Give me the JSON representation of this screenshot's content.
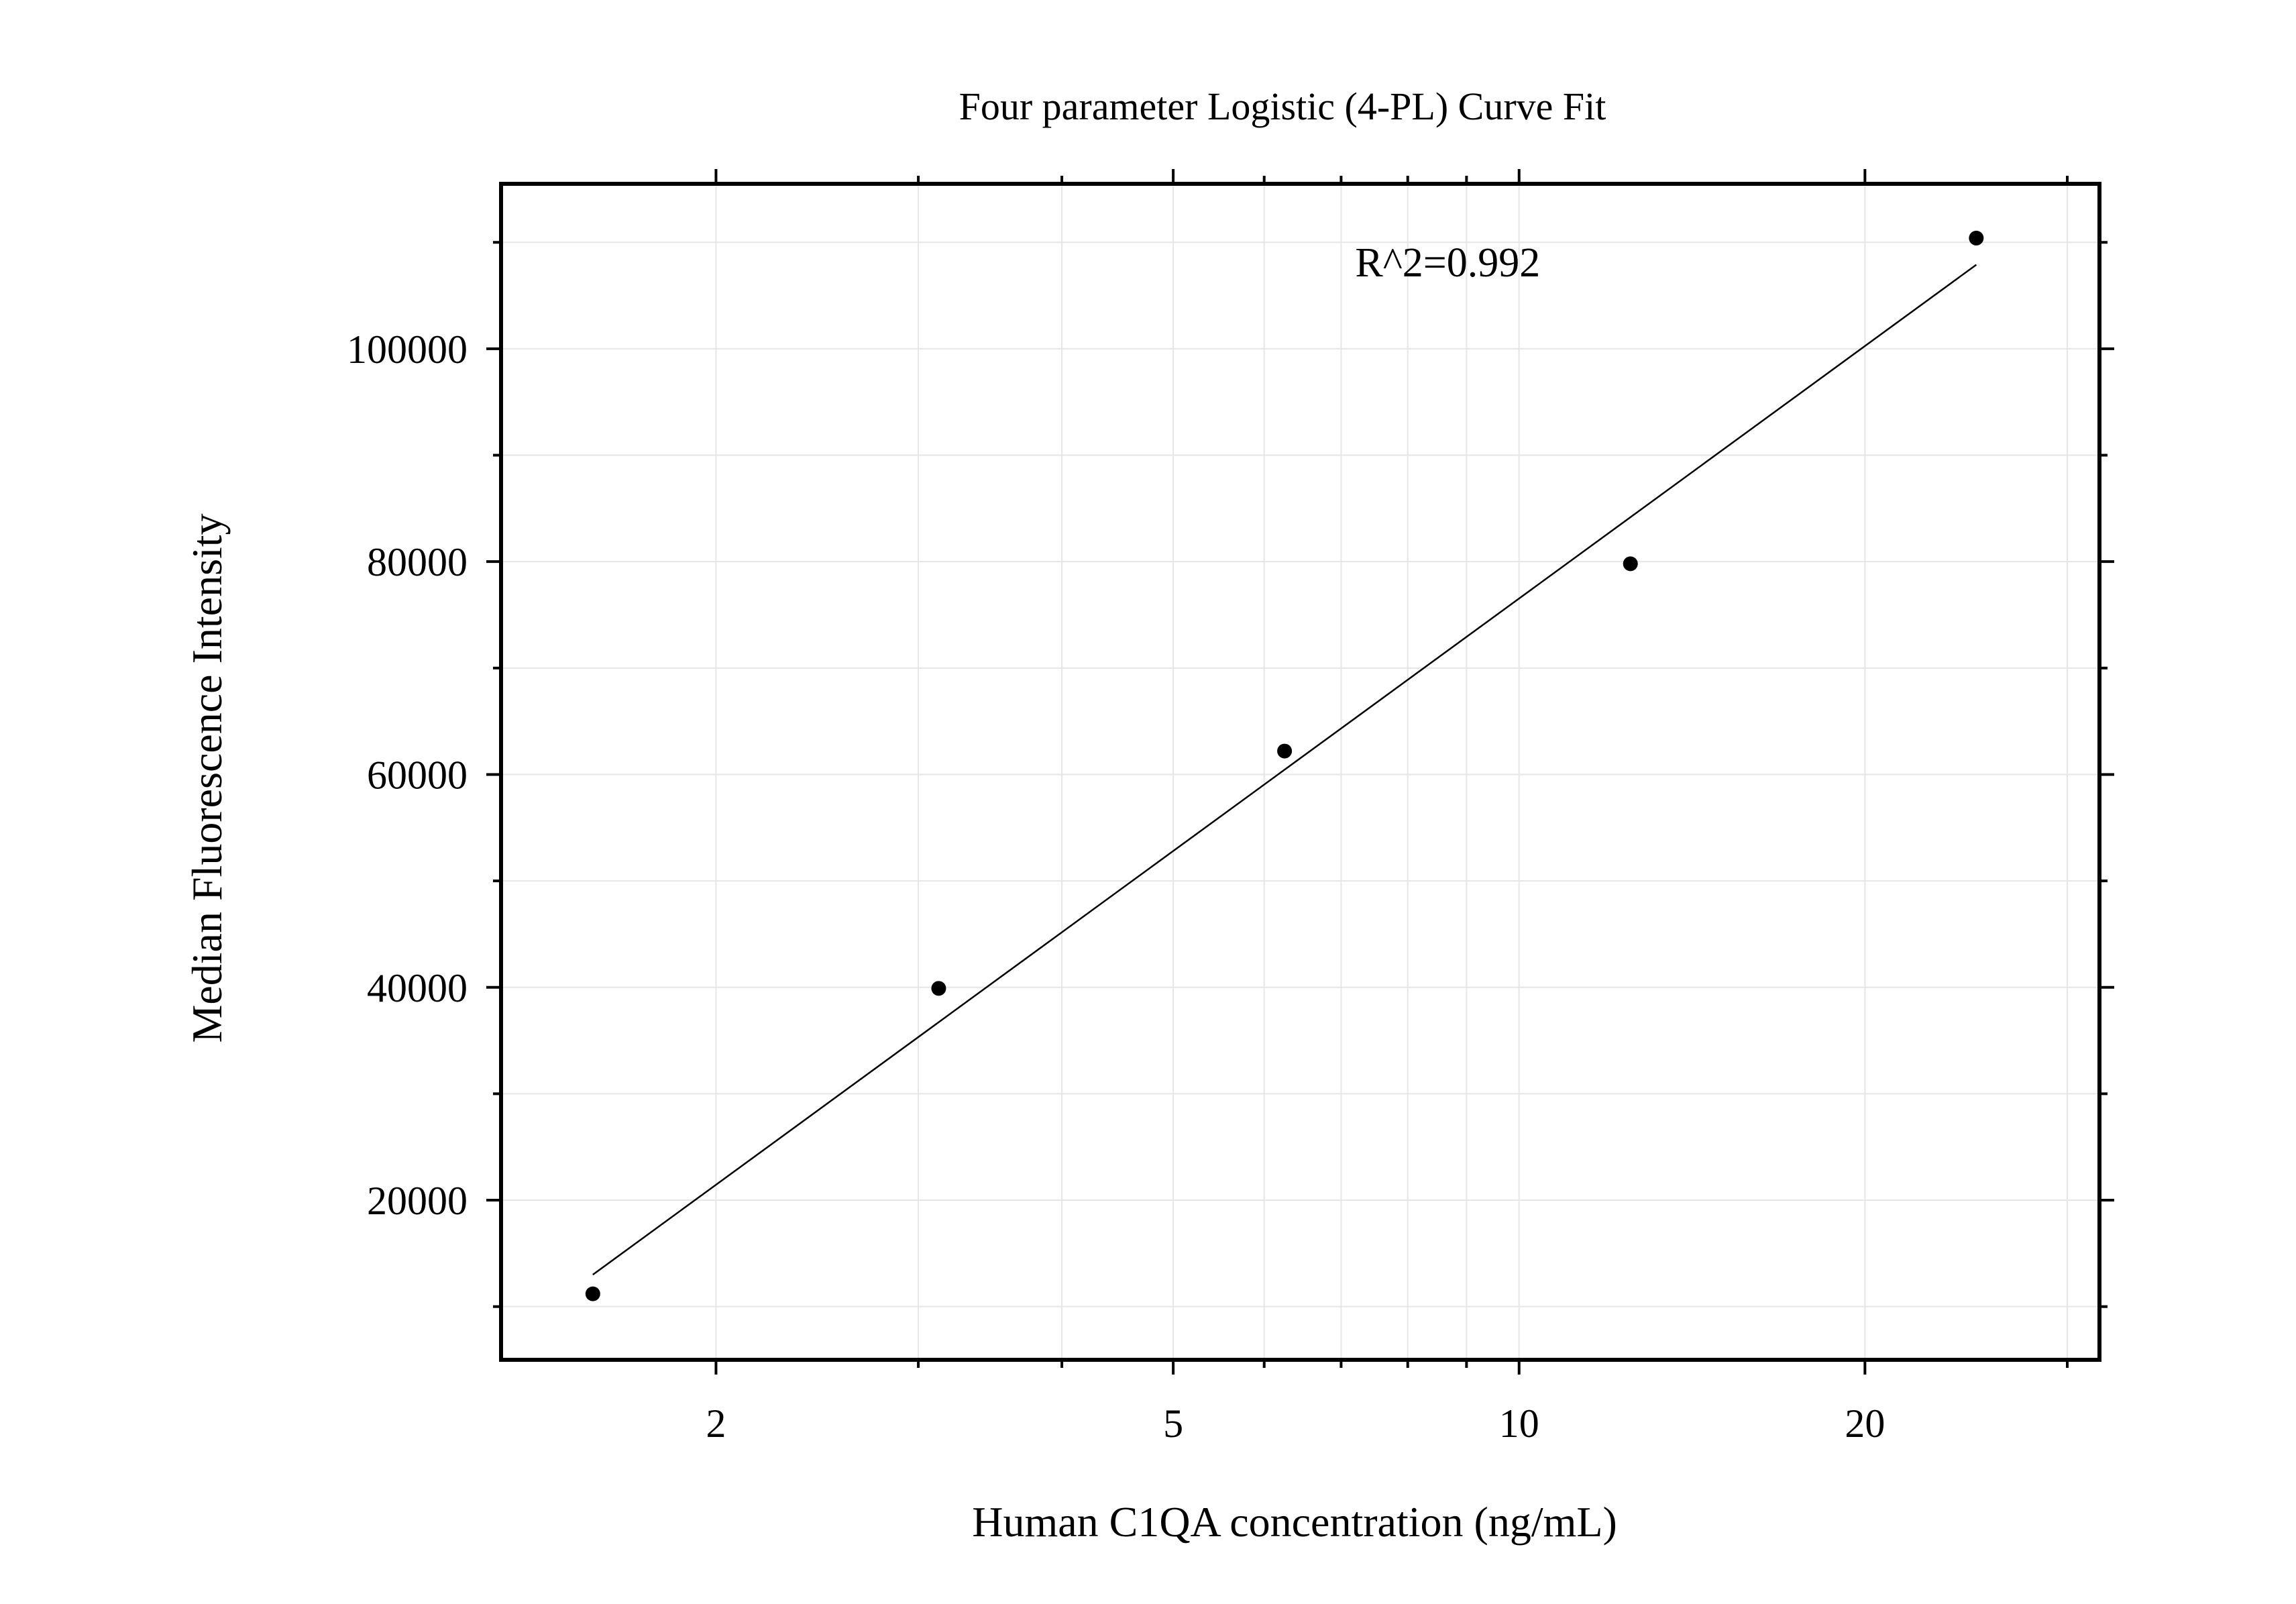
{
  "chart_data": {
    "type": "scatter",
    "title": "Four parameter Logistic (4-PL) Curve Fit",
    "xlabel": "Human C1QA concentration (ng/mL)",
    "ylabel": "Median Fluorescence Intensity",
    "xscale": "log",
    "xlim": [
      1.3,
      32
    ],
    "ylim": [
      5000,
      115500
    ],
    "x_ticks": [
      {
        "value": 2,
        "label": "2"
      },
      {
        "value": 5,
        "label": "5"
      },
      {
        "value": 10,
        "label": "10"
      },
      {
        "value": 20,
        "label": "20"
      }
    ],
    "x_minor_ticks": [
      3,
      4,
      6,
      7,
      8,
      9,
      30
    ],
    "y_ticks": [
      {
        "value": 20000,
        "label": "20000"
      },
      {
        "value": 40000,
        "label": "40000"
      },
      {
        "value": 60000,
        "label": "60000"
      },
      {
        "value": 80000,
        "label": "80000"
      },
      {
        "value": 100000,
        "label": "100000"
      }
    ],
    "y_minor_ticks": [
      10000,
      30000,
      50000,
      70000,
      90000,
      110000
    ],
    "grid": true,
    "series": [
      {
        "x": [
          1.5625,
          3.125,
          6.25,
          12.5,
          25
        ],
        "y": [
          11200,
          39900,
          62200,
          79800,
          110400
        ]
      }
    ],
    "fit_curve": {
      "x": [
        1.5625,
        25
      ],
      "y": [
        13000,
        107900
      ]
    },
    "annotations": [
      {
        "text": "R^2=0.992",
        "x": 7.2,
        "y": 106800
      }
    ],
    "colors": {
      "marker": "#000000",
      "line": "#000000",
      "grid": "#e6e6e6",
      "frame": "#000000"
    }
  }
}
